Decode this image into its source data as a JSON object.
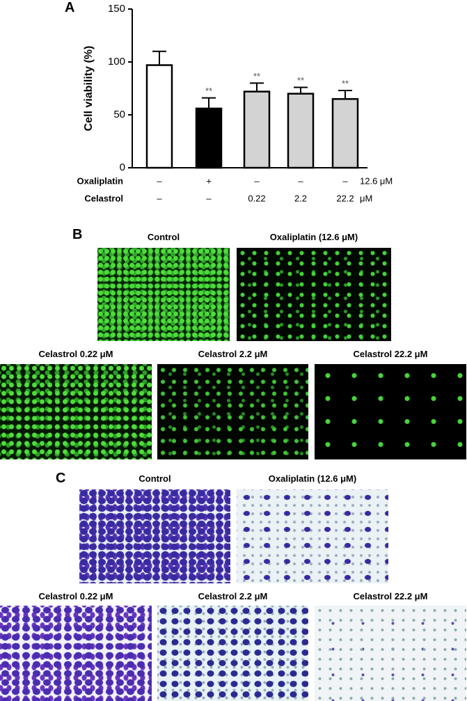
{
  "panel_labels": [
    "A",
    "B",
    "C"
  ],
  "chart_data": {
    "type": "bar",
    "y_label": "Cell viability (%)",
    "values": [
      97,
      56,
      72,
      70,
      65
    ],
    "errors": [
      13,
      10,
      8,
      6,
      8
    ],
    "colors": [
      "#ffffff",
      "#000000",
      "#d3d3d3",
      "#d3d3d3",
      "#d3d3d3"
    ],
    "annotations": [
      null,
      "**",
      "**",
      "**",
      "**"
    ],
    "ylim": [
      0,
      150
    ],
    "yticks": [
      0,
      50,
      100,
      150
    ],
    "treatments": [
      {
        "name": "Oxaliplatin",
        "levels": [
          "–",
          "+",
          "–",
          "–",
          "–"
        ],
        "unit": "12.6 μM"
      },
      {
        "name": "Celastrol",
        "levels": [
          "–",
          "–",
          "0.22",
          "2.2",
          "22.2"
        ],
        "unit": "μM"
      }
    ]
  },
  "panel_b": {
    "titles": [
      "Control",
      "Oxaliplatin (12.6 μM)",
      "Celastrol 0.22 μM",
      "Celastrol 2.2 μM",
      "Celastrol 22.2 μM"
    ]
  },
  "panel_c": {
    "titles": [
      "Control",
      "Oxaliplatin (12.6 μM)",
      "Celastrol 0.22 μM",
      "Celastrol 2.2 μM",
      "Celastrol 22.2 μM"
    ]
  }
}
